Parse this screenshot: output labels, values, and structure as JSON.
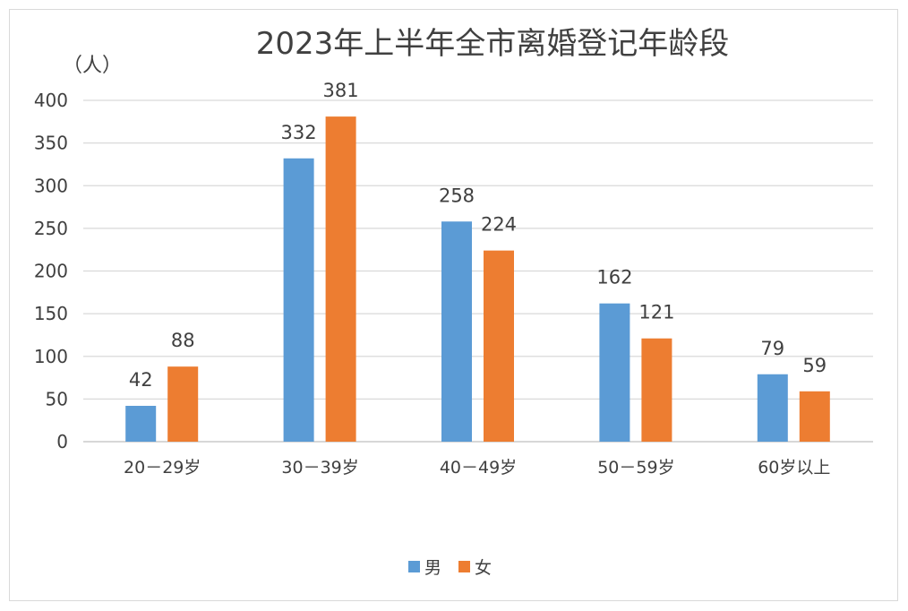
{
  "chart_data": {
    "type": "bar",
    "title": "2023年上半年全市离婚登记年龄段",
    "ylabel": "（人）",
    "xlabel": "",
    "categories": [
      "20－29岁",
      "30－39岁",
      "40－49岁",
      "50－59岁",
      "60岁以上"
    ],
    "series": [
      {
        "name": "男",
        "values": [
          42,
          332,
          258,
          162,
          79
        ],
        "color": "#5B9BD5"
      },
      {
        "name": "女",
        "values": [
          88,
          381,
          224,
          121,
          59
        ],
        "color": "#ED7D31"
      }
    ],
    "ylim": [
      0,
      400
    ],
    "yticks": [
      0,
      50,
      100,
      150,
      200,
      250,
      300,
      350,
      400
    ],
    "grid": true,
    "legend": "bottom",
    "data_labels": true
  }
}
